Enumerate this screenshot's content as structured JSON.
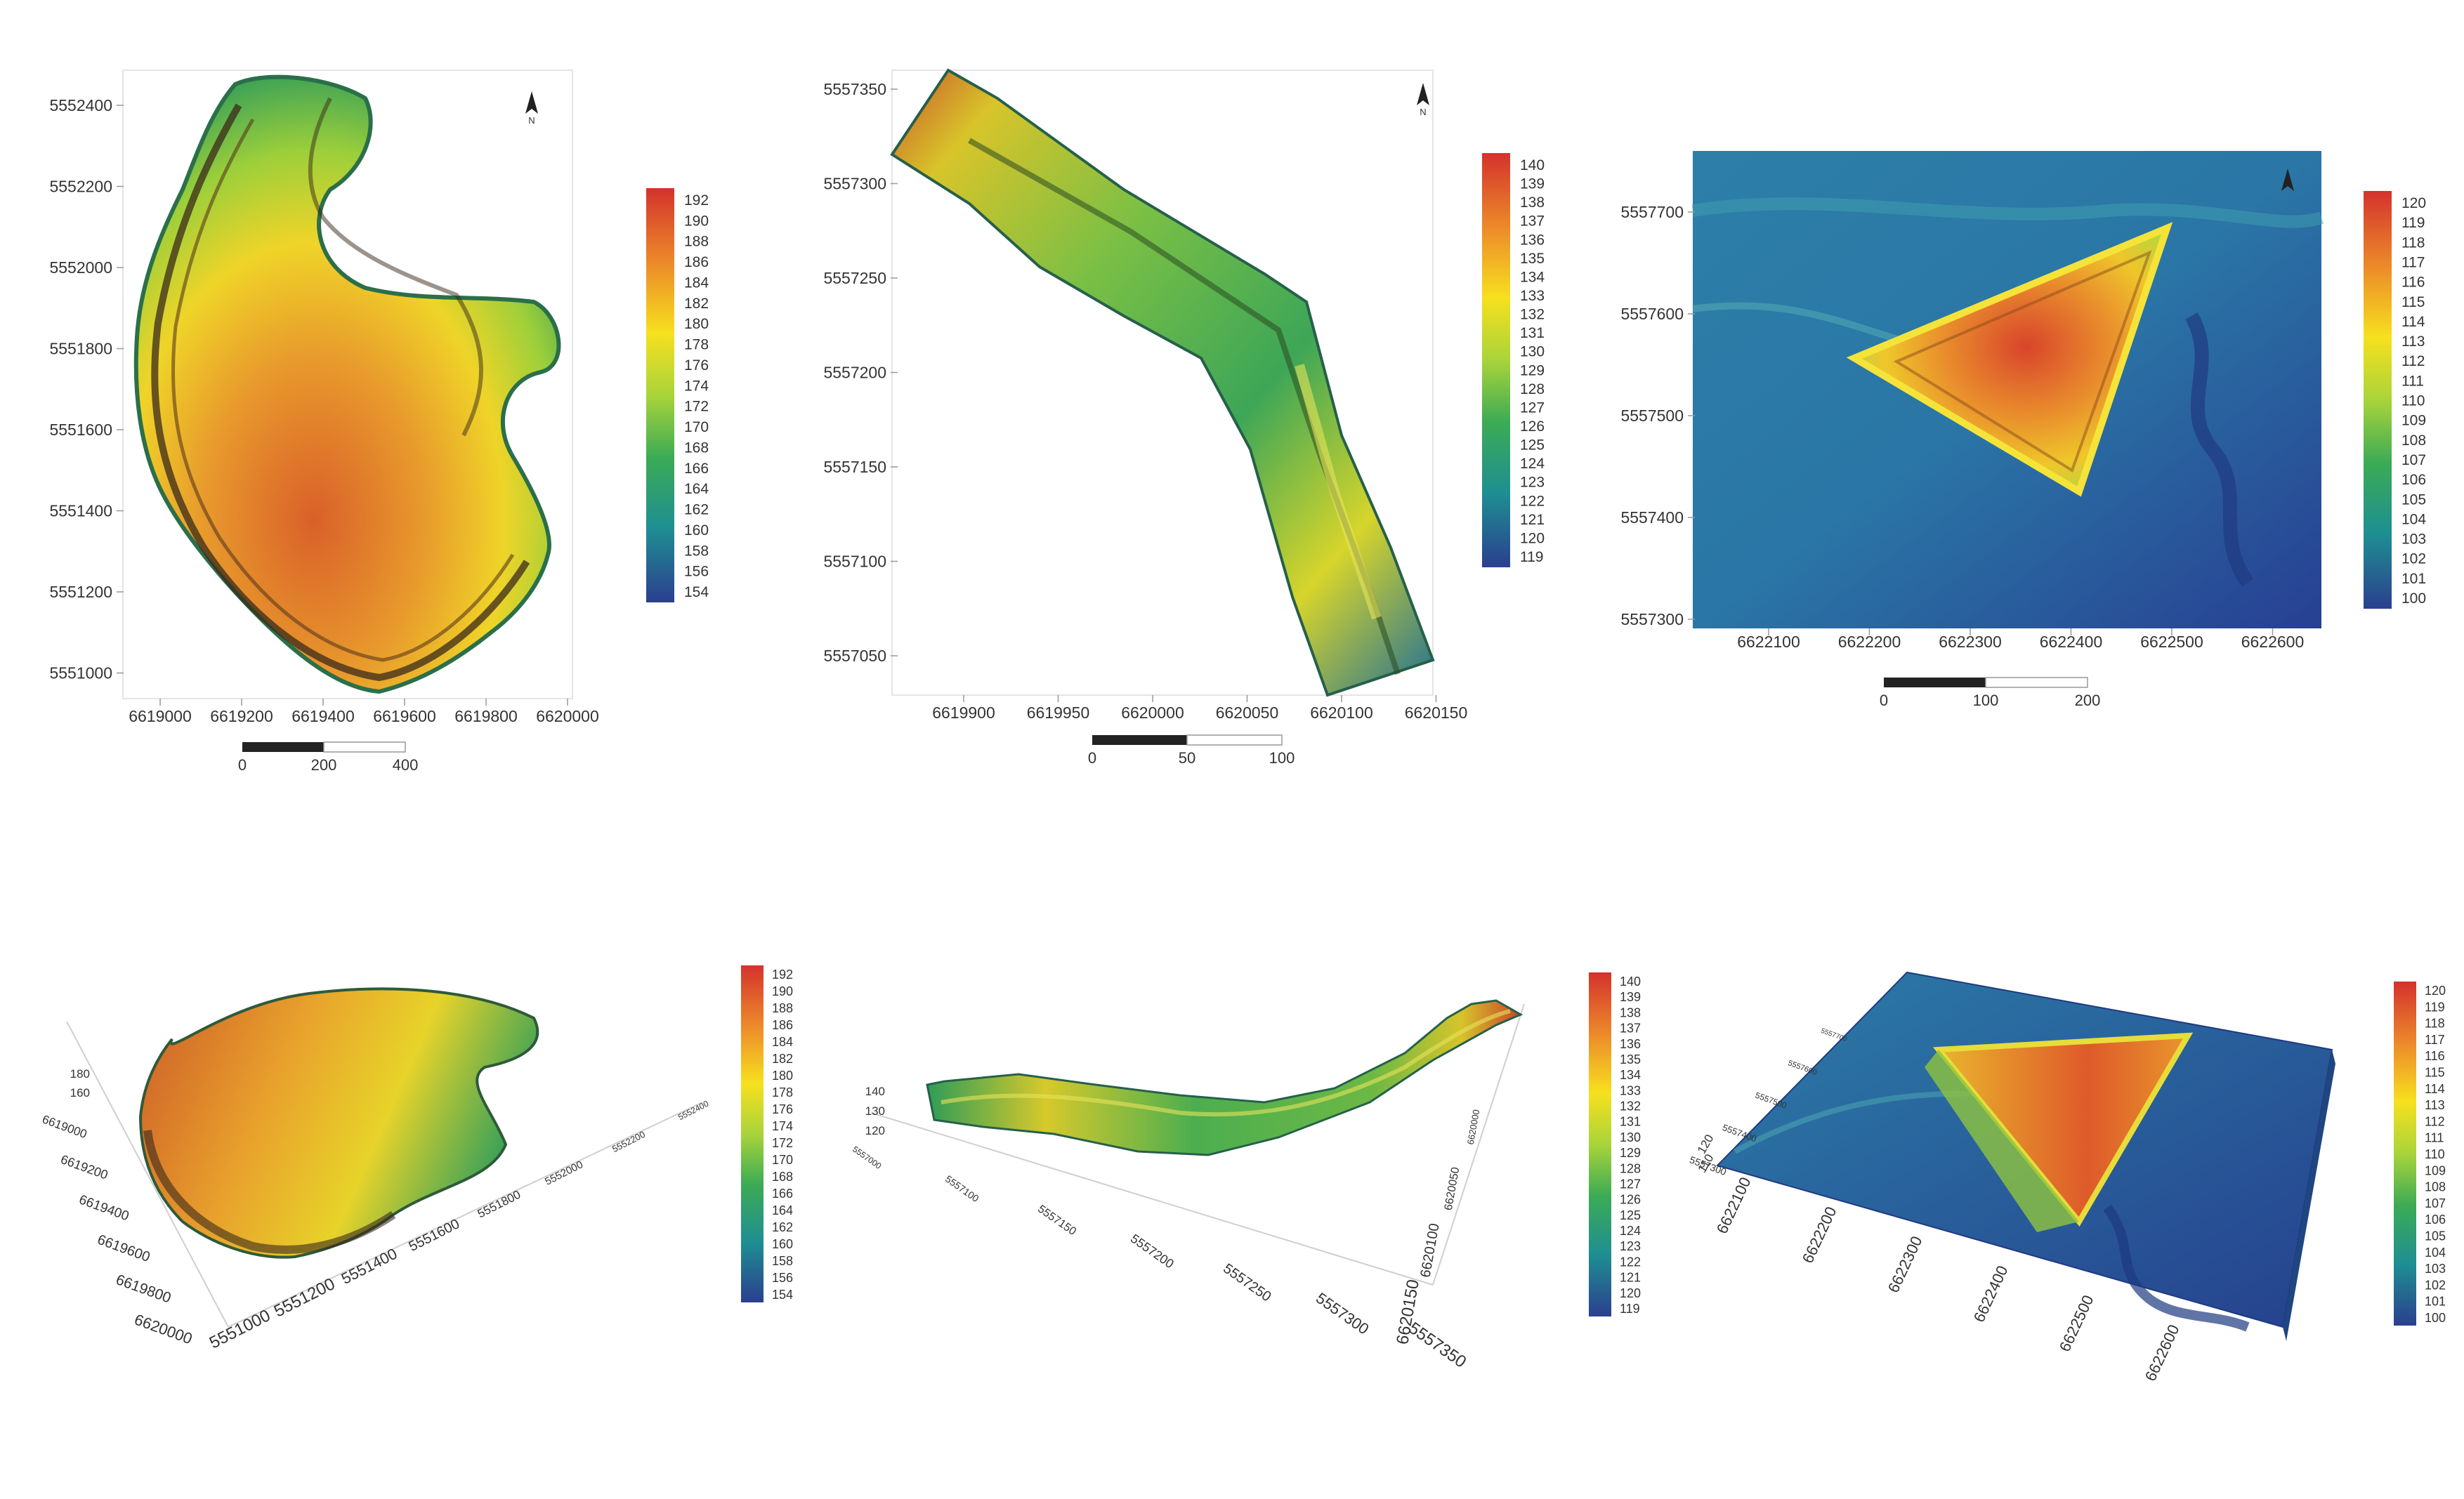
{
  "north_label": "N",
  "maps": [
    {
      "id": "map1",
      "y_ticks": [
        "5552400",
        "5552200",
        "5552000",
        "5551800",
        "5551600",
        "5551400",
        "5551200",
        "5551000"
      ],
      "x_ticks": [
        "6619000",
        "6619200",
        "6619400",
        "6619600",
        "6619800",
        "6620000"
      ],
      "scale_labels": [
        "0",
        "200",
        "400"
      ],
      "legend": [
        "192",
        "190",
        "188",
        "186",
        "184",
        "182",
        "180",
        "178",
        "176",
        "174",
        "172",
        "170",
        "168",
        "166",
        "164",
        "162",
        "160",
        "158",
        "156",
        "154"
      ]
    },
    {
      "id": "map2",
      "y_ticks": [
        "5557350",
        "5557300",
        "5557250",
        "5557200",
        "5557150",
        "5557100",
        "5557050"
      ],
      "x_ticks": [
        "6619900",
        "6619950",
        "6620000",
        "6620050",
        "6620100",
        "6620150"
      ],
      "scale_labels": [
        "0",
        "50",
        "100"
      ],
      "legend": [
        "140",
        "139",
        "138",
        "137",
        "136",
        "135",
        "134",
        "133",
        "132",
        "131",
        "130",
        "129",
        "128",
        "127",
        "126",
        "125",
        "124",
        "123",
        "122",
        "121",
        "120",
        "119"
      ]
    },
    {
      "id": "map3",
      "y_ticks": [
        "5557700",
        "5557600",
        "5557500",
        "5557400",
        "5557300"
      ],
      "x_ticks": [
        "6622100",
        "6622200",
        "6622300",
        "6622400",
        "6622500",
        "6622600"
      ],
      "scale_labels": [
        "0",
        "100",
        "200"
      ],
      "legend": [
        "120",
        "119",
        "118",
        "117",
        "116",
        "115",
        "114",
        "113",
        "112",
        "111",
        "110",
        "109",
        "108",
        "107",
        "106",
        "105",
        "104",
        "103",
        "102",
        "101",
        "100"
      ]
    }
  ],
  "views3d": [
    {
      "id": "v1",
      "z_ticks": [
        "180",
        "160"
      ],
      "left_axis": [
        "6619000",
        "6619200",
        "6619400",
        "6619600",
        "6619800",
        "6620000"
      ],
      "bottom_axis": [
        "5551000",
        "5551200",
        "5551400",
        "5551600",
        "5551800",
        "5552000",
        "5552200",
        "5552400"
      ],
      "legend": [
        "192",
        "190",
        "188",
        "186",
        "184",
        "182",
        "180",
        "178",
        "176",
        "174",
        "172",
        "170",
        "168",
        "166",
        "164",
        "162",
        "160",
        "158",
        "156",
        "154"
      ]
    },
    {
      "id": "v2",
      "z_ticks": [
        "140",
        "130",
        "120"
      ],
      "bottom_axis": [
        "5557000",
        "5557100",
        "5557150",
        "5557200",
        "5557250",
        "5557300",
        "5557350"
      ],
      "right_axis": [
        "6620150",
        "6620100",
        "6620050",
        "6620000"
      ],
      "legend": [
        "140",
        "139",
        "138",
        "137",
        "136",
        "135",
        "134",
        "133",
        "132",
        "131",
        "130",
        "129",
        "128",
        "127",
        "126",
        "125",
        "124",
        "123",
        "122",
        "121",
        "120",
        "119"
      ]
    },
    {
      "id": "v3",
      "z_ticks": [
        "120",
        "110"
      ],
      "left_axis": [
        "5557700",
        "5557600",
        "5557500",
        "5557400",
        "5557300"
      ],
      "bottom_axis": [
        "6622100",
        "6622200",
        "6622300",
        "6622400",
        "6622500",
        "6622600"
      ],
      "legend": [
        "120",
        "119",
        "118",
        "117",
        "116",
        "115",
        "114",
        "113",
        "112",
        "111",
        "110",
        "109",
        "108",
        "107",
        "106",
        "105",
        "104",
        "103",
        "102",
        "101",
        "100"
      ]
    }
  ],
  "colors": {
    "ramp": [
      "#d4322c",
      "#e8752a",
      "#f5b323",
      "#f4e81e",
      "#a9d43a",
      "#4db34d",
      "#1e9a8a",
      "#2a6fa4",
      "#2b3f8f"
    ]
  }
}
